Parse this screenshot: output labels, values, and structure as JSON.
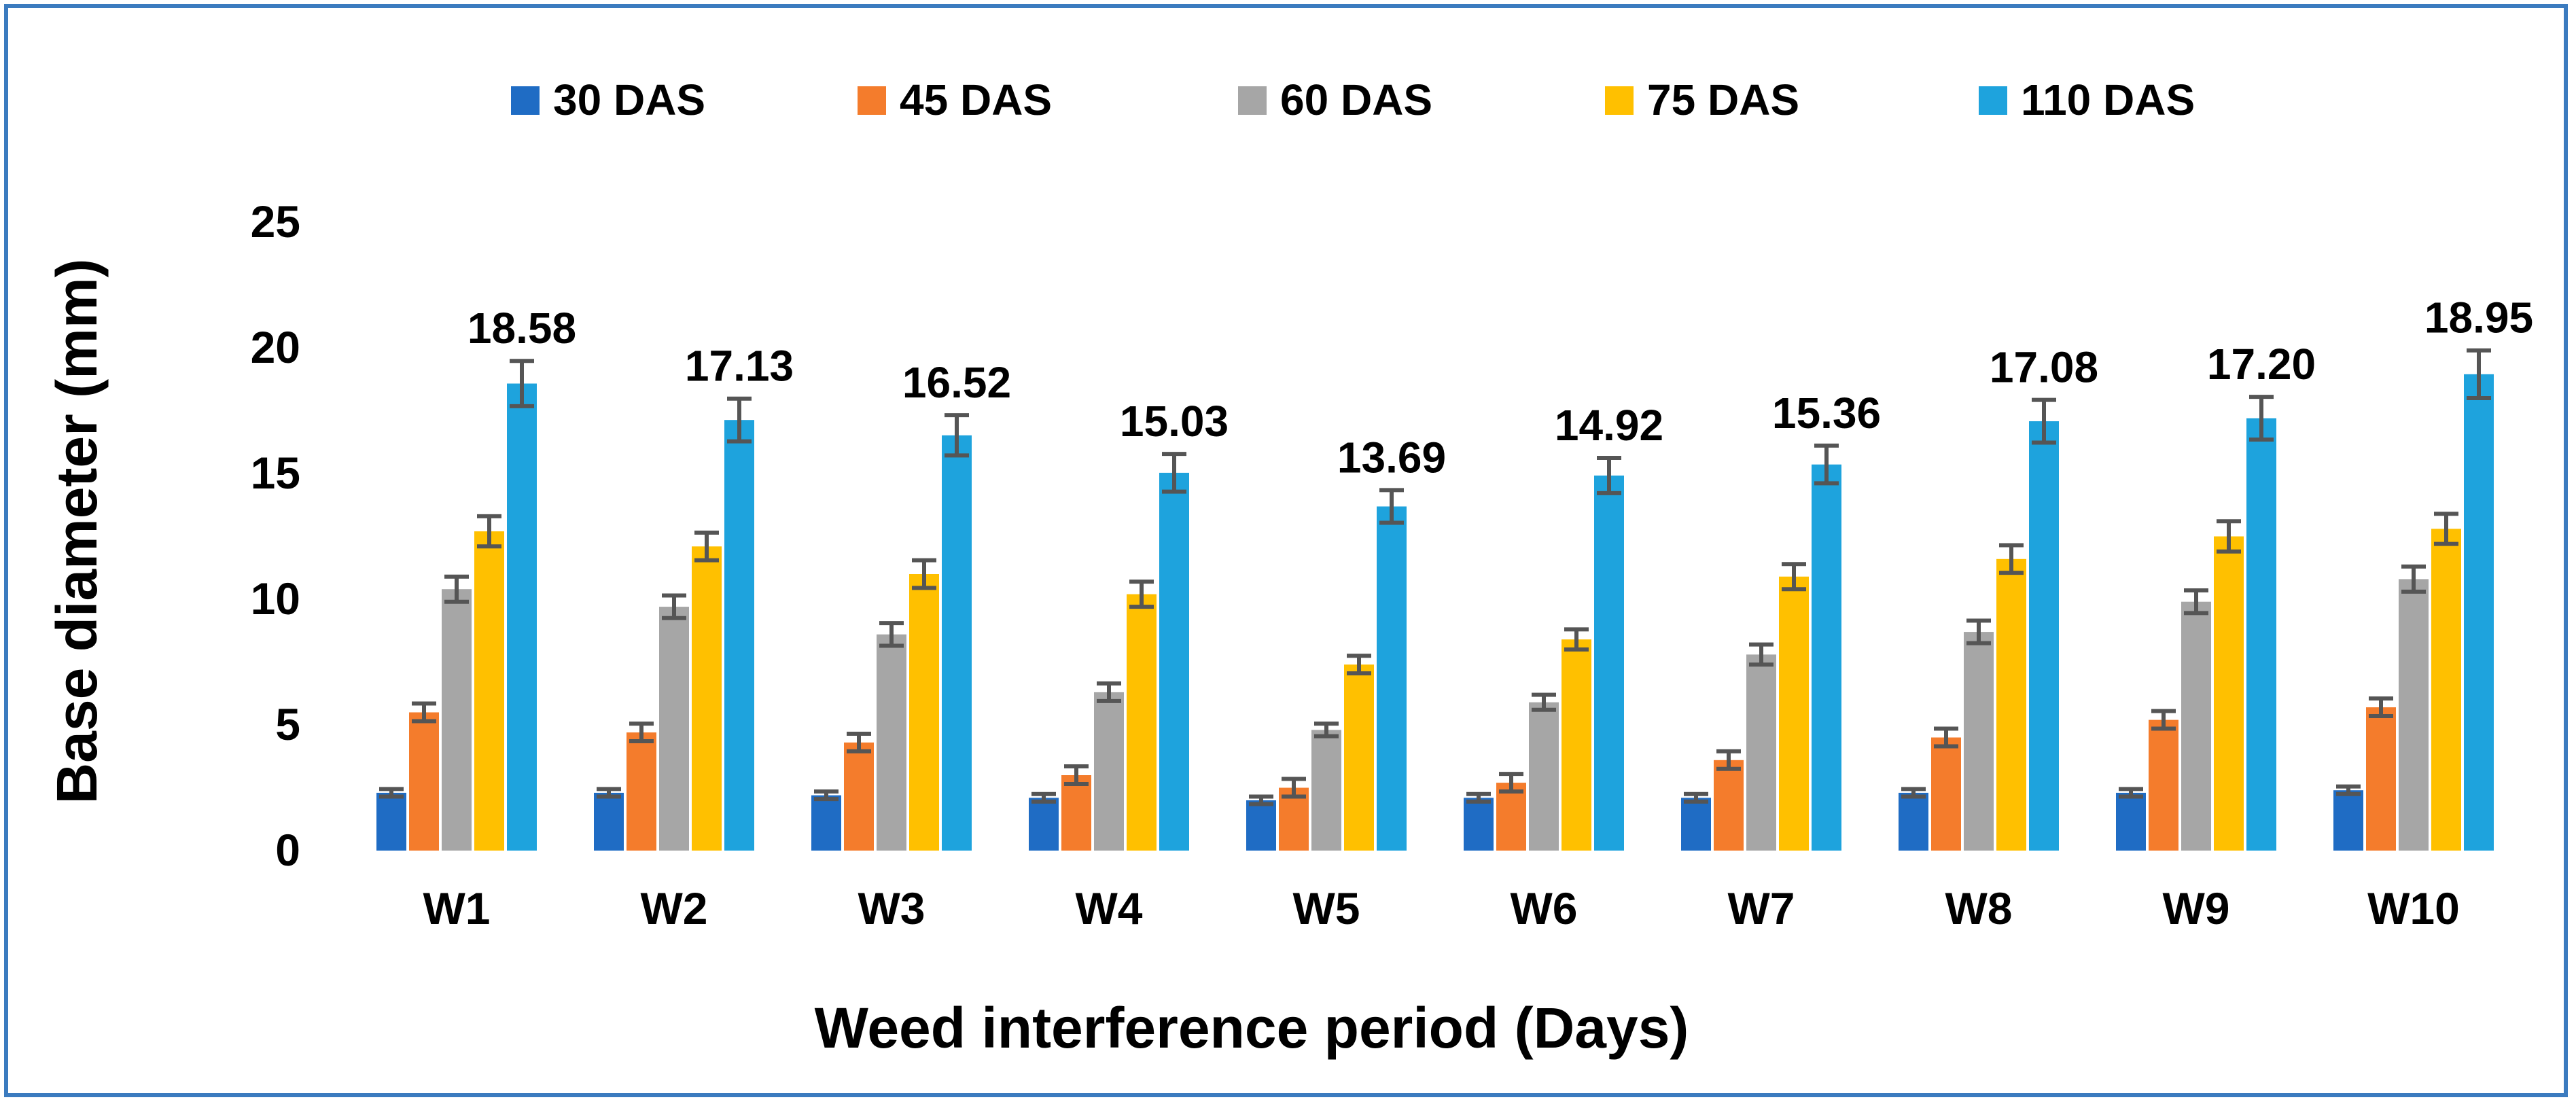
{
  "chart_data": {
    "type": "bar",
    "title": "",
    "xlabel": "Weed interference period (Days)",
    "ylabel": "Base diameter (mm)",
    "ylim": [
      0,
      25
    ],
    "yticks": [
      "0",
      "5",
      "10",
      "15",
      "20",
      "25"
    ],
    "grid": false,
    "legend_position": "top",
    "categories": [
      "W1",
      "W2",
      "W3",
      "W4",
      "W5",
      "W6",
      "W7",
      "W8",
      "W9",
      "W10"
    ],
    "series": [
      {
        "name": "30 DAS",
        "color": "#1f6cc4",
        "values": [
          2.3,
          2.3,
          2.2,
          2.1,
          2.0,
          2.1,
          2.1,
          2.3,
          2.3,
          2.4
        ],
        "errors": [
          0.15,
          0.15,
          0.15,
          0.15,
          0.15,
          0.15,
          0.15,
          0.15,
          0.15,
          0.15
        ]
      },
      {
        "name": "45 DAS",
        "color": "#f47c2c",
        "values": [
          5.5,
          4.7,
          4.3,
          3.0,
          2.5,
          2.7,
          3.6,
          4.5,
          5.2,
          5.7
        ],
        "errors": [
          0.35,
          0.35,
          0.35,
          0.35,
          0.35,
          0.35,
          0.35,
          0.35,
          0.35,
          0.35
        ]
      },
      {
        "name": "60 DAS",
        "color": "#a6a6a6",
        "values": [
          10.4,
          9.7,
          8.6,
          6.3,
          4.8,
          5.9,
          7.8,
          8.7,
          9.9,
          10.8
        ],
        "errors": [
          0.5,
          0.45,
          0.45,
          0.35,
          0.25,
          0.3,
          0.4,
          0.45,
          0.45,
          0.5
        ]
      },
      {
        "name": "75 DAS",
        "color": "#ffc000",
        "values": [
          12.7,
          12.1,
          11.0,
          10.2,
          7.4,
          8.4,
          10.9,
          11.6,
          12.5,
          12.8
        ],
        "errors": [
          0.6,
          0.55,
          0.55,
          0.5,
          0.35,
          0.4,
          0.5,
          0.55,
          0.6,
          0.6
        ]
      },
      {
        "name": "110 DAS",
        "color": "#1ea3dd",
        "values": [
          18.58,
          17.13,
          16.52,
          15.03,
          13.69,
          14.92,
          15.36,
          17.08,
          17.2,
          18.95
        ],
        "errors": [
          0.9,
          0.85,
          0.8,
          0.75,
          0.65,
          0.7,
          0.75,
          0.85,
          0.85,
          0.95
        ],
        "data_labels": [
          "18.58",
          "17.13",
          "16.52",
          "15.03",
          "13.69",
          "14.92",
          "15.36",
          "17.08",
          "17.20",
          "18.95"
        ]
      }
    ]
  }
}
